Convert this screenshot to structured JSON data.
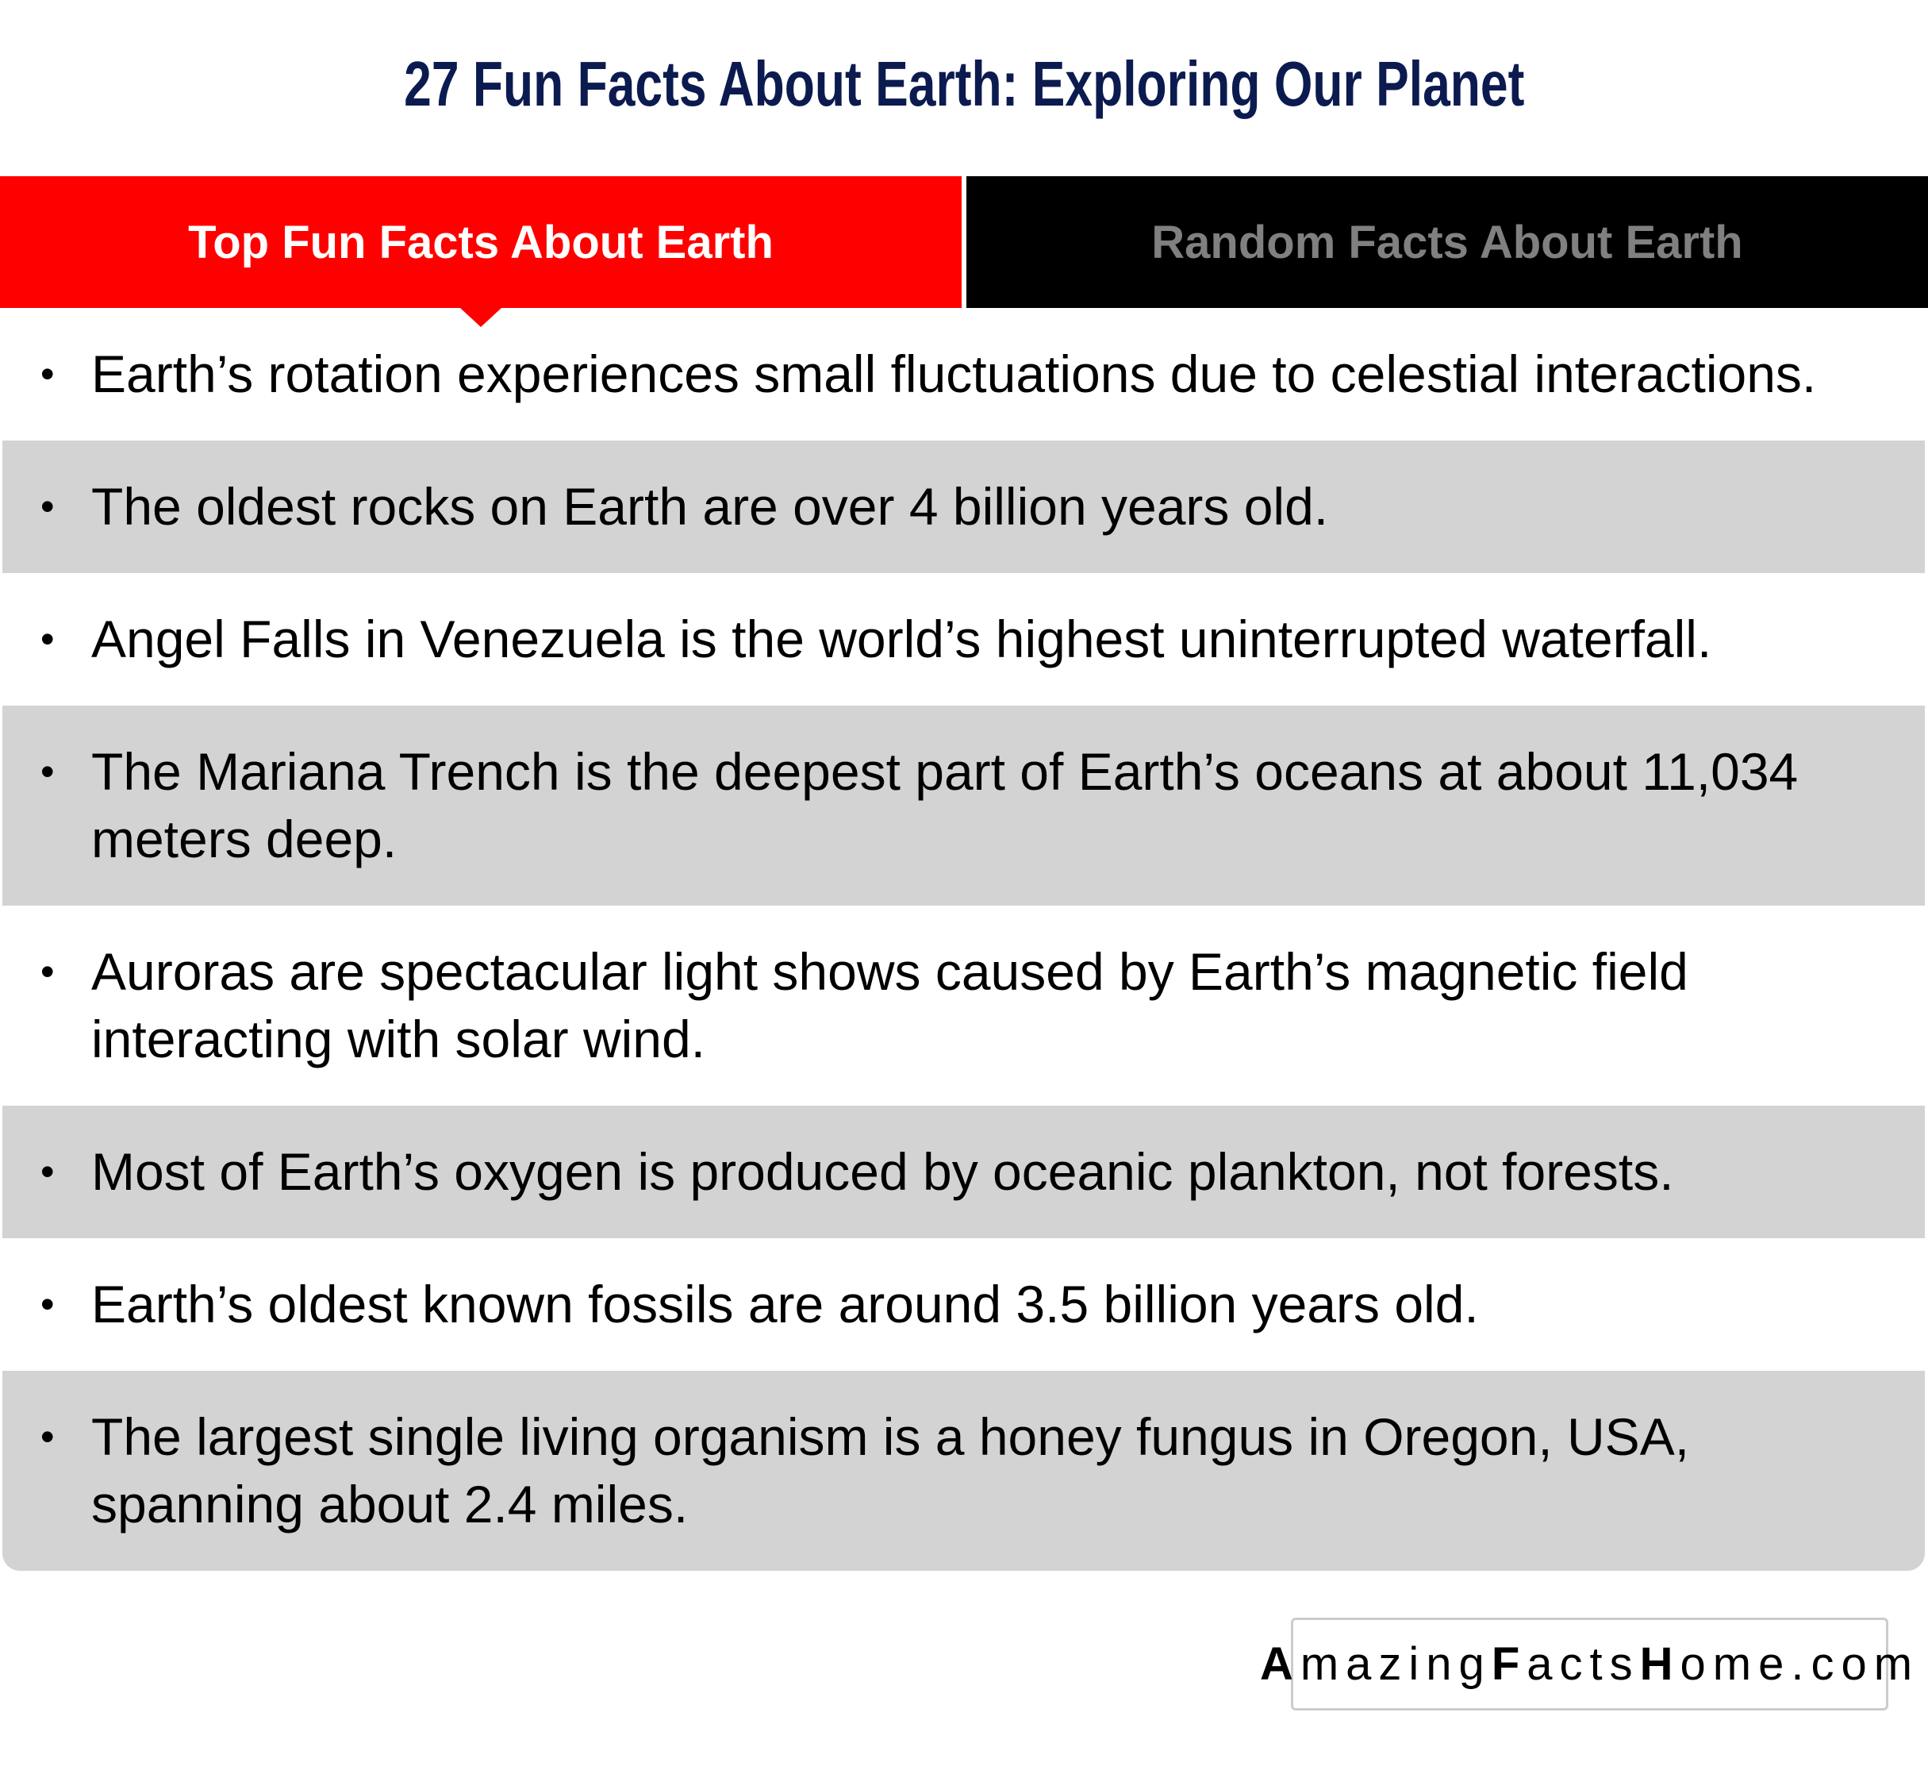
{
  "header": {
    "title": "27 Fun Facts About Earth: Exploring Our Planet"
  },
  "tabs": [
    {
      "label": "Top Fun Facts About Earth",
      "active": true
    },
    {
      "label": "Random Facts About Earth",
      "active": false
    }
  ],
  "facts": [
    "Earth’s rotation experiences small fluctuations due to celestial interactions.",
    "The oldest rocks on Earth are over 4 billion years old.",
    "Angel Falls in Venezuela is the world’s highest uninterrupted waterfall.",
    "The Mariana Trench is the deepest part of Earth’s oceans at about 11,034 meters deep.",
    "Auroras are spectacular light shows caused by Earth’s magnetic field interacting with solar wind.",
    "Most of Earth’s oxygen is produced by oceanic plankton, not forests.",
    "Earth’s oldest known fossils are around 3.5 billion years old.",
    "The largest single living organism is a honey fungus in Oregon, USA, spanning about 2.4 miles."
  ],
  "bullet": "•",
  "watermark": {
    "parts": [
      "A",
      "mazing",
      "F",
      "acts",
      "H",
      "ome.com"
    ]
  },
  "colors": {
    "title": "#0c1b4f",
    "active_tab": "#ff0000",
    "inactive_tab": "#000000",
    "inactive_tab_text": "#808080",
    "stripe": "#d3d3d3"
  }
}
